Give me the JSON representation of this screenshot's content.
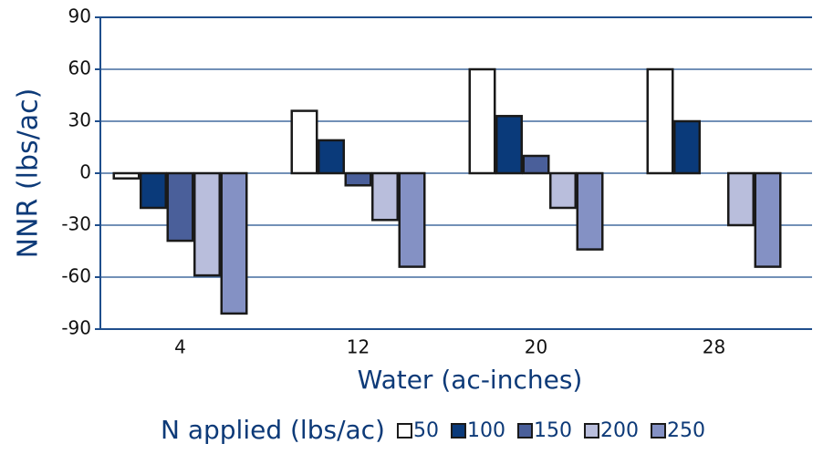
{
  "chart_data": {
    "type": "bar",
    "y_label": "NNR (lbs/ac)",
    "x_label": "Water (ac-inches)",
    "legend_title": "N applied (lbs/ac)",
    "categories": [
      "4",
      "12",
      "20",
      "28"
    ],
    "series": [
      {
        "name": "50",
        "color": "#ffffff",
        "values": [
          -3,
          36,
          60,
          60
        ]
      },
      {
        "name": "100",
        "color": "#0a3a7a",
        "values": [
          -20,
          19,
          33,
          30
        ]
      },
      {
        "name": "150",
        "color": "#4a5f9a",
        "values": [
          -39,
          -7,
          10,
          null
        ]
      },
      {
        "name": "200",
        "color": "#b9bedc",
        "values": [
          -59,
          -27,
          -20,
          -30
        ]
      },
      {
        "name": "250",
        "color": "#8491c4",
        "values": [
          -81,
          -54,
          -44,
          -54
        ]
      }
    ],
    "ylim": [
      -90,
      90
    ],
    "yticks": [
      -90,
      -60,
      -30,
      0,
      30,
      60,
      90
    ],
    "grid": true
  }
}
